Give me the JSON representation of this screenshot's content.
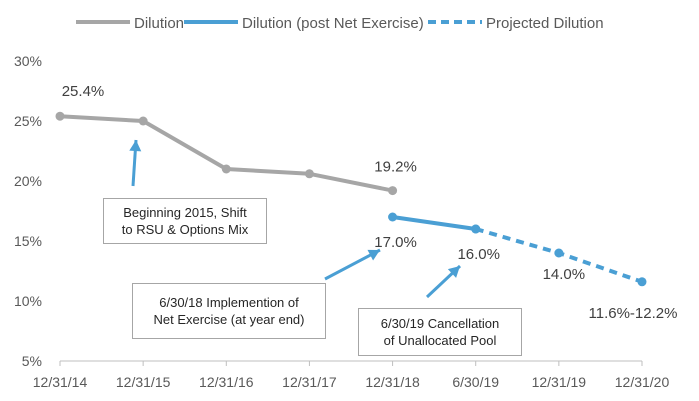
{
  "chart_data": {
    "type": "line",
    "categories": [
      "12/31/14",
      "12/31/15",
      "12/31/16",
      "12/31/17",
      "12/31/18",
      "6/30/19",
      "12/31/19",
      "12/31/20"
    ],
    "ylim": [
      5,
      30
    ],
    "yticks": [
      "5%",
      "10%",
      "15%",
      "20%",
      "25%",
      "30%"
    ],
    "series": [
      {
        "name": "Dilution",
        "style": "solid",
        "color": "#a6a6a6",
        "values": [
          25.4,
          25.0,
          21.0,
          20.6,
          19.2,
          null,
          null,
          null
        ]
      },
      {
        "name": "Dilution (post Net Exercise)",
        "style": "solid",
        "color": "#4a9fd4",
        "values": [
          null,
          null,
          null,
          null,
          17.0,
          16.0,
          null,
          null
        ]
      },
      {
        "name": "Projected Dilution",
        "style": "dashed",
        "color": "#4a9fd4",
        "values": [
          null,
          null,
          null,
          null,
          null,
          16.0,
          14.0,
          11.6
        ]
      }
    ],
    "data_labels": [
      {
        "text": "25.4%",
        "category": 0,
        "value": 25.4
      },
      {
        "text": "19.2%",
        "category": 4,
        "value": 19.2
      },
      {
        "text": "17.0%",
        "category": 4,
        "value": 17.0
      },
      {
        "text": "16.0%",
        "category": 5,
        "value": 16.0
      },
      {
        "text": "14.0%",
        "category": 6,
        "value": 14.0
      },
      {
        "text": "11.6%-12.2%",
        "category": 7,
        "value": 11.6
      }
    ],
    "annotations": [
      {
        "text": "Beginning 2015, Shift\nto RSU & Options Mix"
      },
      {
        "text": "6/30/18 Implemention of\nNet Exercise (at year end)"
      },
      {
        "text": "6/30/19 Cancellation\nof Unallocated Pool"
      }
    ],
    "legend_position": "top",
    "grid": false,
    "colors": {
      "gray": "#a6a6a6",
      "blue": "#4a9fd4",
      "arrow": "#4a9fd4"
    }
  }
}
